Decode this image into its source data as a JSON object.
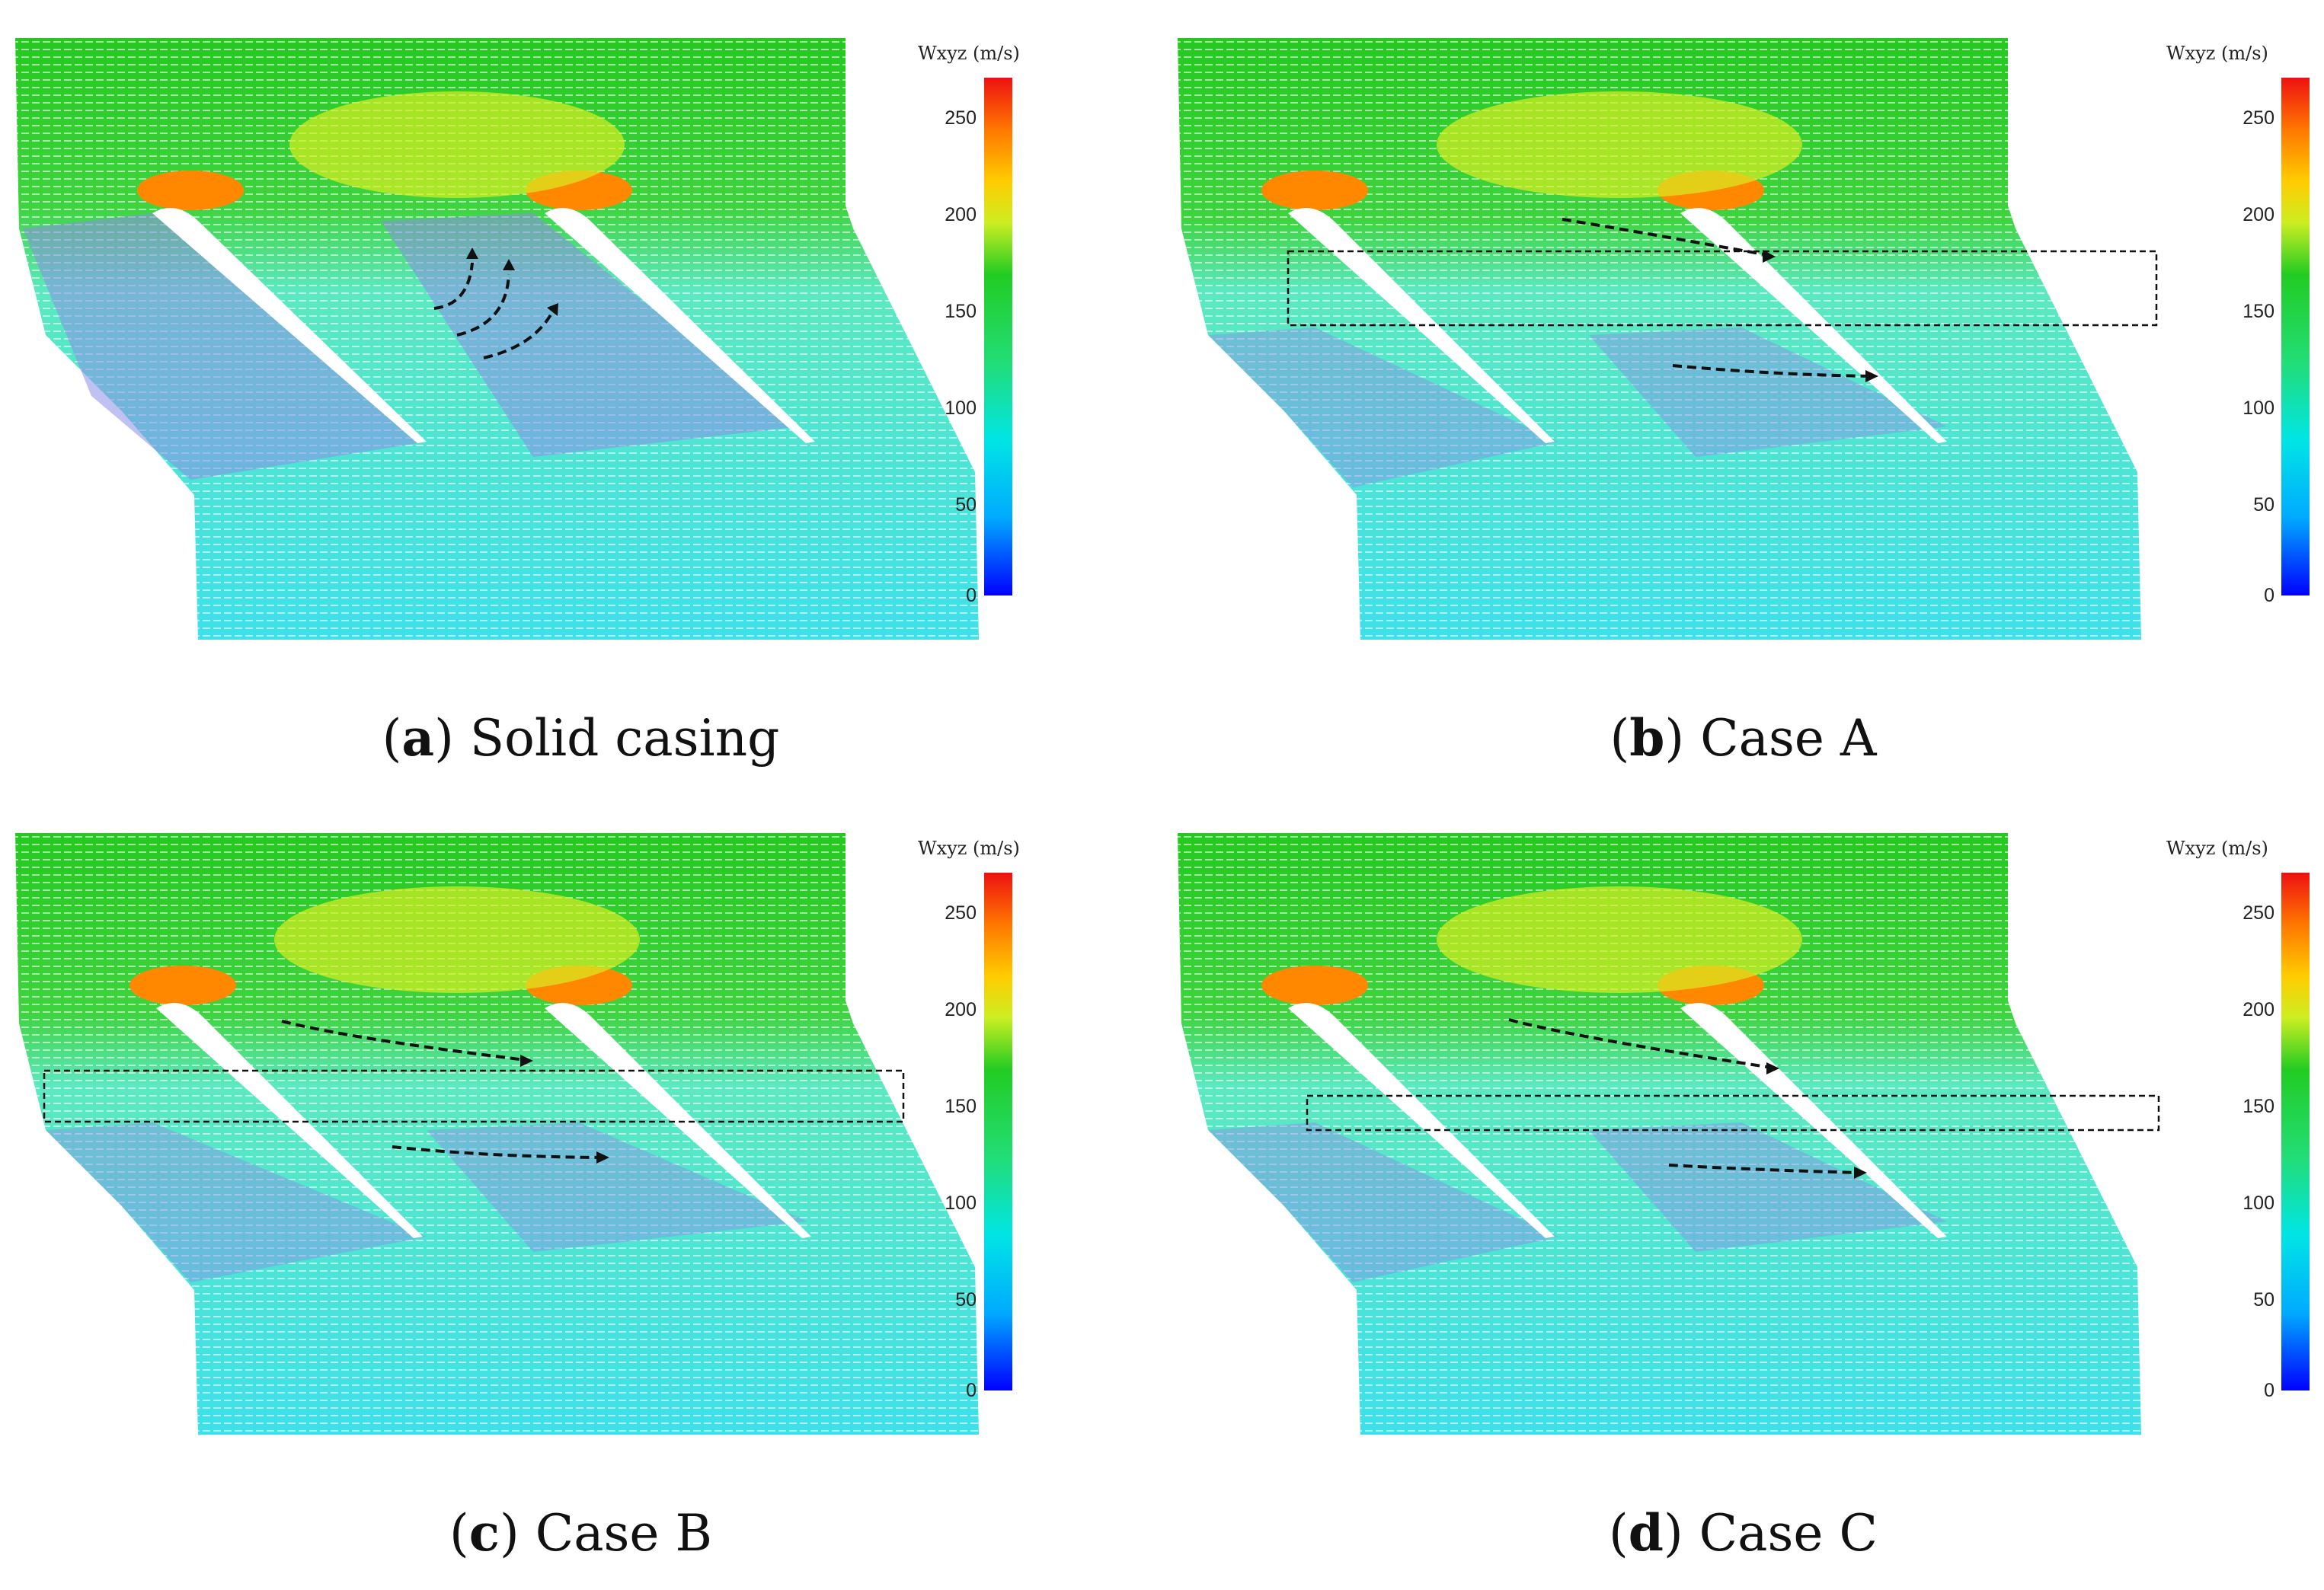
{
  "figure": {
    "panels": [
      {
        "id": "a",
        "caption_letter": "a",
        "caption_text": " Solid casing",
        "colorbar_title": "Wxyz (m/s)",
        "ticks": [
          "250",
          "200",
          "150",
          "100",
          "50",
          "0"
        ],
        "box": false,
        "arrows": "curl"
      },
      {
        "id": "b",
        "caption_letter": "b",
        "caption_text": " Case A",
        "colorbar_title": "Wxyz (m/s)",
        "ticks": [
          "250",
          "200",
          "150",
          "100",
          "50",
          "0"
        ],
        "box": true,
        "arrows": "straight"
      },
      {
        "id": "c",
        "caption_letter": "c",
        "caption_text": " Case B",
        "colorbar_title": "Wxyz (m/s)",
        "ticks": [
          "250",
          "200",
          "150",
          "100",
          "50",
          "0"
        ],
        "box": true,
        "arrows": "straight"
      },
      {
        "id": "d",
        "caption_letter": "d",
        "caption_text": " Case C",
        "colorbar_title": "Wxyz (m/s)",
        "ticks": [
          "250",
          "200",
          "150",
          "100",
          "50",
          "0"
        ],
        "box": true,
        "arrows": "straight"
      }
    ],
    "colormap": [
      "#0000ff",
      "#00aaff",
      "#00e5e5",
      "#33dd66",
      "#22cc22",
      "#ccee22",
      "#ffcc00",
      "#ff7700",
      "#ee1111"
    ],
    "colorbar_range": [
      0,
      270
    ]
  }
}
